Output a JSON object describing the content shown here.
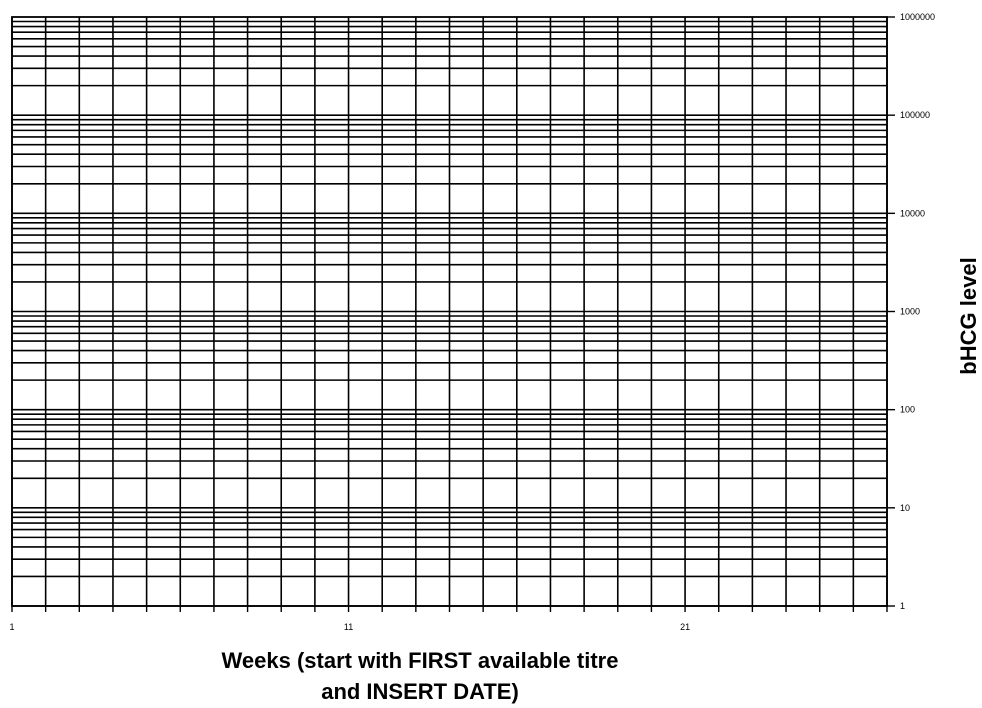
{
  "chart_data": {
    "type": "line",
    "xlabel": "Weeks (start with FIRST available titre and INSERT DATE)",
    "xlabel_lines": [
      "Weeks (start with FIRST available titre",
      "and INSERT DATE)"
    ],
    "ylabel": "bHCG level",
    "x_ticks": [
      1,
      11,
      21
    ],
    "x_range": [
      1,
      27
    ],
    "y_scale": "log",
    "y_ticks": [
      "1",
      "10",
      "100",
      "1000",
      "10000",
      "100000",
      "1000000"
    ],
    "y_range": [
      1,
      1000000
    ],
    "grid": true,
    "series": []
  }
}
